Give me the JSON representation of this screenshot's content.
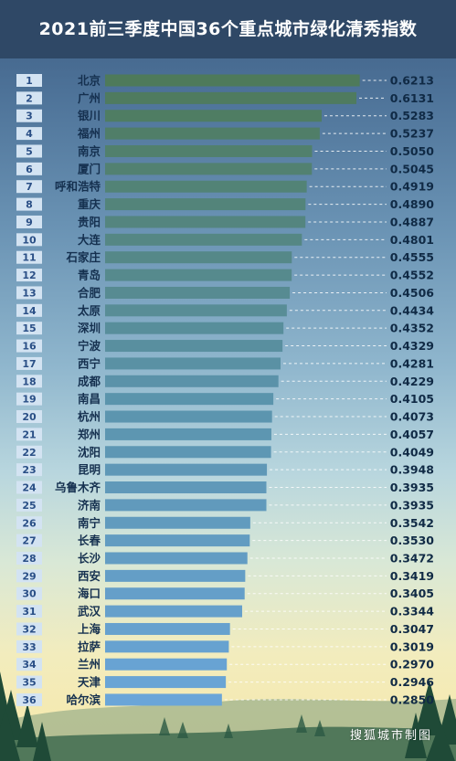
{
  "title": "2021前三季度中国36个重点城市绿化清秀指数",
  "credit": "搜狐城市制图",
  "colors": {
    "bar_top": "#4e7a5a",
    "bar_mid": "#5b93ab",
    "bar_bottom": "#6aa5d8",
    "title_band": "#2f4866"
  },
  "chart_data": {
    "type": "bar",
    "orientation": "horizontal",
    "title": "2021前三季度中国36个重点城市绿化清秀指数",
    "xlim": [
      0,
      0.68
    ],
    "grid": false,
    "ranks": [
      "1",
      "2",
      "3",
      "4",
      "5",
      "6",
      "7",
      "8",
      "9",
      "10",
      "11",
      "12",
      "13",
      "14",
      "15",
      "16",
      "17",
      "18",
      "19",
      "20",
      "21",
      "22",
      "23",
      "24",
      "25",
      "26",
      "27",
      "28",
      "29",
      "30",
      "31",
      "32",
      "33",
      "34",
      "35",
      "36"
    ],
    "categories": [
      "北京",
      "广州",
      "银川",
      "福州",
      "南京",
      "厦门",
      "呼和浩特",
      "重庆",
      "贵阳",
      "大连",
      "石家庄",
      "青岛",
      "合肥",
      "太原",
      "深圳",
      "宁波",
      "西宁",
      "成都",
      "南昌",
      "杭州",
      "郑州",
      "沈阳",
      "昆明",
      "乌鲁木齐",
      "济南",
      "南宁",
      "长春",
      "长沙",
      "西安",
      "海口",
      "武汉",
      "上海",
      "拉萨",
      "兰州",
      "天津",
      "哈尔滨"
    ],
    "values": [
      0.6213,
      0.6131,
      0.5283,
      0.5237,
      0.505,
      0.5045,
      0.4919,
      0.489,
      0.4887,
      0.4801,
      0.4555,
      0.4552,
      0.4506,
      0.4434,
      0.4352,
      0.4329,
      0.4281,
      0.4229,
      0.4105,
      0.4073,
      0.4057,
      0.4049,
      0.3948,
      0.3935,
      0.3935,
      0.3542,
      0.353,
      0.3472,
      0.3419,
      0.3405,
      0.3344,
      0.3047,
      0.3019,
      0.297,
      0.2946,
      0.285
    ],
    "labels": [
      "0.6213",
      "0.6131",
      "0.5283",
      "0.5237",
      "0.5050",
      "0.5045",
      "0.4919",
      "0.4890",
      "0.4887",
      "0.4801",
      "0.4555",
      "0.4552",
      "0.4506",
      "0.4434",
      "0.4352",
      "0.4329",
      "0.4281",
      "0.4229",
      "0.4105",
      "0.4073",
      "0.4057",
      "0.4049",
      "0.3948",
      "0.3935",
      "0.3935",
      "0.3542",
      "0.3530",
      "0.3472",
      "0.3419",
      "0.3405",
      "0.3344",
      "0.3047",
      "0.3019",
      "0.2970",
      "0.2946",
      "0.2850"
    ]
  }
}
